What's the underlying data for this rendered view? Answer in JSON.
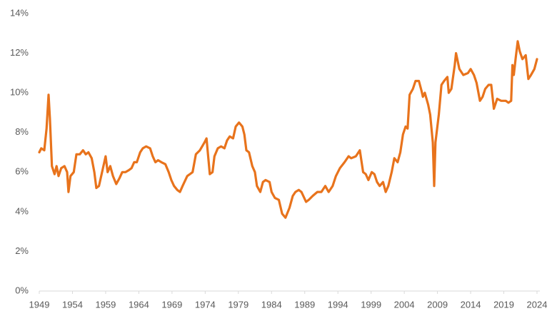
{
  "chart_data": {
    "type": "line",
    "color": "#e8731c",
    "x": [
      1949.0,
      1949.3,
      1949.75,
      1950.1,
      1950.4,
      1950.6,
      1950.9,
      1951.3,
      1951.6,
      1951.9,
      1952.3,
      1952.8,
      1953.2,
      1953.4,
      1953.7,
      1954.2,
      1954.6,
      1955.1,
      1955.6,
      1956.0,
      1956.4,
      1956.9,
      1957.3,
      1957.6,
      1958.0,
      1958.6,
      1959.0,
      1959.3,
      1959.7,
      1960.1,
      1960.6,
      1961.1,
      1961.5,
      1962.0,
      1962.5,
      1962.9,
      1963.3,
      1963.7,
      1964.2,
      1964.6,
      1965.1,
      1965.7,
      1966.1,
      1966.5,
      1966.9,
      1967.4,
      1968.0,
      1968.5,
      1968.9,
      1969.3,
      1969.8,
      1970.2,
      1970.6,
      1971.3,
      1971.7,
      1972.1,
      1972.6,
      1973.2,
      1973.9,
      1974.2,
      1974.7,
      1975.1,
      1975.4,
      1975.9,
      1976.4,
      1976.9,
      1977.3,
      1977.7,
      1978.2,
      1978.6,
      1979.1,
      1979.6,
      1979.9,
      1980.2,
      1980.6,
      1981.1,
      1981.5,
      1981.8,
      1982.3,
      1982.7,
      1983.1,
      1983.7,
      1984.0,
      1984.5,
      1985.1,
      1985.6,
      1986.1,
      1986.7,
      1987.2,
      1987.6,
      1988.1,
      1988.5,
      1989.2,
      1989.6,
      1990.2,
      1990.9,
      1991.5,
      1992.1,
      1992.6,
      1993.2,
      1993.7,
      1994.3,
      1995.0,
      1995.6,
      1996.0,
      1996.7,
      1997.3,
      1997.8,
      1998.2,
      1998.6,
      1999.1,
      1999.5,
      1999.9,
      2000.3,
      2000.8,
      2001.2,
      2001.6,
      2002.1,
      2002.5,
      2003.0,
      2003.4,
      2003.8,
      2004.2,
      2004.5,
      2004.8,
      2005.3,
      2005.7,
      2006.2,
      2006.6,
      2006.8,
      2007.1,
      2007.6,
      2007.9,
      2008.3,
      2008.5,
      2008.7,
      2009.2,
      2009.6,
      2010.0,
      2010.5,
      2010.7,
      2011.1,
      2011.6,
      2011.8,
      2012.3,
      2012.9,
      2013.6,
      2014.0,
      2014.5,
      2014.9,
      2015.4,
      2015.8,
      2016.2,
      2016.7,
      2017.1,
      2017.5,
      2018.0,
      2018.6,
      2019.3,
      2019.7,
      2020.1,
      2020.3,
      2020.5,
      2020.8,
      2021.1,
      2021.4,
      2021.8,
      2022.3,
      2022.7,
      2023.1,
      2023.6,
      2024.0
    ],
    "values": [
      7.0,
      7.2,
      7.1,
      8.2,
      9.9,
      8.7,
      6.3,
      5.9,
      6.3,
      5.8,
      6.2,
      6.3,
      6.0,
      5.0,
      5.8,
      6.0,
      6.9,
      6.9,
      7.1,
      6.9,
      7.0,
      6.7,
      6.0,
      5.2,
      5.3,
      6.2,
      6.8,
      6.0,
      6.3,
      5.8,
      5.4,
      5.7,
      6.0,
      6.0,
      6.1,
      6.2,
      6.5,
      6.5,
      7.0,
      7.2,
      7.3,
      7.2,
      6.8,
      6.5,
      6.6,
      6.5,
      6.4,
      6.0,
      5.6,
      5.3,
      5.1,
      5.0,
      5.3,
      5.8,
      5.9,
      6.0,
      6.9,
      7.1,
      7.5,
      7.7,
      5.9,
      6.0,
      6.8,
      7.2,
      7.3,
      7.2,
      7.6,
      7.8,
      7.7,
      8.3,
      8.5,
      8.3,
      7.9,
      7.1,
      7.0,
      6.3,
      6.0,
      5.3,
      5.0,
      5.5,
      5.6,
      5.5,
      5.0,
      4.7,
      4.6,
      3.9,
      3.7,
      4.2,
      4.8,
      5.0,
      5.1,
      5.0,
      4.5,
      4.6,
      4.8,
      5.0,
      5.0,
      5.3,
      5.0,
      5.3,
      5.8,
      6.2,
      6.5,
      6.8,
      6.7,
      6.8,
      7.1,
      6.0,
      5.9,
      5.6,
      6.0,
      5.9,
      5.5,
      5.3,
      5.5,
      5.0,
      5.3,
      6.0,
      6.7,
      6.5,
      7.0,
      7.9,
      8.3,
      8.2,
      9.9,
      10.2,
      10.6,
      10.6,
      10.1,
      9.8,
      10.0,
      9.4,
      8.9,
      7.5,
      5.3,
      7.5,
      8.9,
      10.4,
      10.6,
      10.8,
      10.0,
      10.2,
      11.4,
      12.0,
      11.2,
      10.9,
      11.0,
      11.2,
      10.9,
      10.5,
      9.6,
      9.8,
      10.2,
      10.4,
      10.4,
      9.2,
      9.7,
      9.6,
      9.6,
      9.5,
      9.6,
      11.4,
      10.9,
      11.8,
      12.6,
      12.1,
      11.7,
      11.9,
      10.7,
      10.9,
      11.2,
      11.7
    ],
    "xlim": [
      1949,
      2024
    ],
    "xticks": [
      1949,
      1954,
      1959,
      1964,
      1969,
      1974,
      1979,
      1984,
      1989,
      1994,
      1999,
      2004,
      2009,
      2014,
      2019,
      2024
    ],
    "ylim": [
      0,
      14
    ],
    "yticks": [
      {
        "value": 0,
        "label": "0%"
      },
      {
        "value": 2,
        "label": "2%"
      },
      {
        "value": 4,
        "label": "4%"
      },
      {
        "value": 6,
        "label": "6%"
      },
      {
        "value": 8,
        "label": "8%"
      },
      {
        "value": 10,
        "label": "10%"
      },
      {
        "value": 12,
        "label": "12%"
      },
      {
        "value": 14,
        "label": "14%"
      }
    ],
    "grid": false
  }
}
